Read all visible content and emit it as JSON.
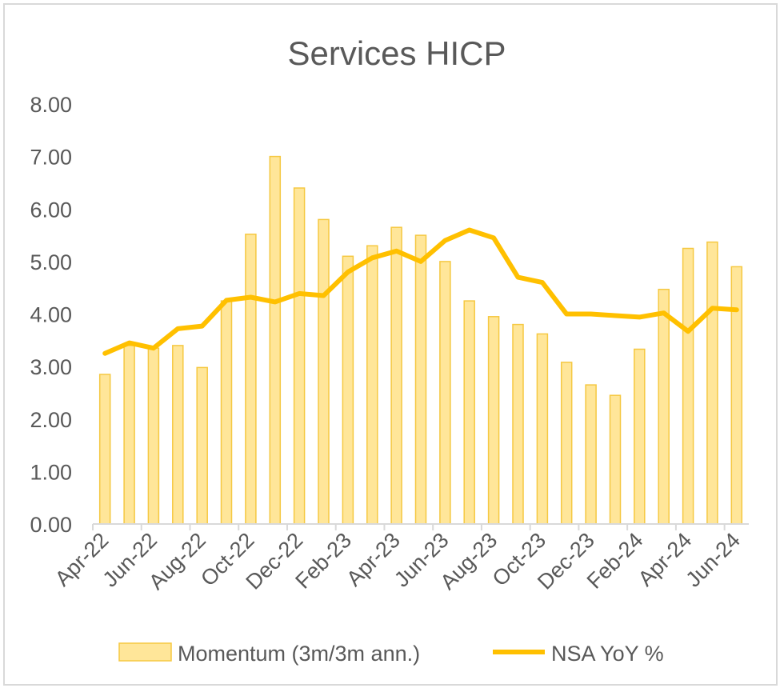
{
  "chart_data": {
    "type": "bar",
    "title": "Services HICP",
    "xlabel": "",
    "ylabel": "",
    "ylim": [
      0,
      8
    ],
    "y_ticks": [
      "0.00",
      "1.00",
      "2.00",
      "3.00",
      "4.00",
      "5.00",
      "6.00",
      "7.00",
      "8.00"
    ],
    "categories": [
      "Apr-22",
      "May-22",
      "Jun-22",
      "Jul-22",
      "Aug-22",
      "Sep-22",
      "Oct-22",
      "Nov-22",
      "Dec-22",
      "Jan-23",
      "Feb-23",
      "Mar-23",
      "Apr-23",
      "May-23",
      "Jun-23",
      "Jul-23",
      "Aug-23",
      "Sep-23",
      "Oct-23",
      "Nov-23",
      "Dec-23",
      "Jan-24",
      "Feb-24",
      "Mar-24",
      "Apr-24",
      "May-24",
      "Jun-24"
    ],
    "x_tick_labels": [
      "Apr-22",
      "Jun-22",
      "Aug-22",
      "Oct-22",
      "Dec-22",
      "Feb-23",
      "Apr-23",
      "Jun-23",
      "Aug-23",
      "Oct-23",
      "Dec-23",
      "Feb-24",
      "Apr-24",
      "Jun-24"
    ],
    "series": [
      {
        "name": "Momentum (3m/3m ann.)",
        "type": "bar",
        "color": "#FFE699",
        "stroke": "#F5C842",
        "values": [
          2.85,
          3.4,
          3.35,
          3.4,
          2.98,
          4.25,
          5.52,
          7.0,
          6.4,
          5.8,
          5.1,
          5.3,
          5.65,
          5.5,
          5.0,
          4.25,
          3.95,
          3.8,
          3.62,
          3.08,
          2.65,
          2.45,
          3.33,
          4.47,
          5.25,
          5.37,
          4.9
        ]
      },
      {
        "name": "NSA YoY %",
        "type": "line",
        "color": "#FFC000",
        "values": [
          3.25,
          3.45,
          3.35,
          3.72,
          3.77,
          4.26,
          4.32,
          4.23,
          4.39,
          4.35,
          4.8,
          5.07,
          5.2,
          5.0,
          5.4,
          5.6,
          5.45,
          4.7,
          4.6,
          4.0,
          4.0,
          3.97,
          3.94,
          4.02,
          3.67,
          4.11,
          4.08
        ]
      }
    ],
    "grid": false,
    "legend": "bottom"
  }
}
